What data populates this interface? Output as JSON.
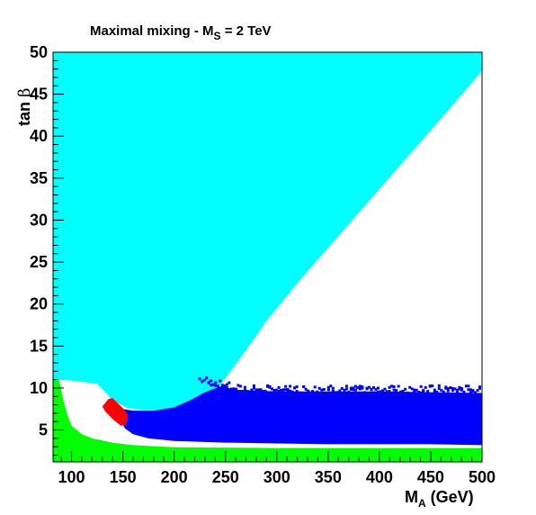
{
  "chart_data": {
    "type": "scatter",
    "title": {
      "prefix": "Maximal mixing - M",
      "subscript": "S",
      "suffix": " = 2 TeV"
    },
    "xlabel": {
      "main": "M",
      "subscript": "A",
      "suffix": " (GeV)"
    },
    "ylabel": {
      "main": "tan ",
      "greek": "β"
    },
    "xlim": [
      82,
      500
    ],
    "ylim": [
      1.2,
      50
    ],
    "xticks": [
      100,
      150,
      200,
      250,
      300,
      350,
      400,
      450,
      500
    ],
    "yticks": [
      5,
      10,
      15,
      20,
      25,
      30,
      35,
      40,
      45,
      50
    ],
    "grid": false,
    "colors": {
      "excluded_cyan": "#00ffff",
      "excluded_green": "#00ff00",
      "scan_blue": "#0000ff",
      "region_red": "#ff0000",
      "background": "#ffffff"
    },
    "regions": [
      {
        "color": "excluded_cyan",
        "points": [
          [
            82,
            50
          ],
          [
            500,
            50
          ],
          [
            500,
            47.8
          ],
          [
            470,
            43.5
          ],
          [
            420,
            36.5
          ],
          [
            370,
            29.5
          ],
          [
            320,
            22.5
          ],
          [
            290,
            18
          ],
          [
            270,
            14.5
          ],
          [
            255,
            12
          ],
          [
            245,
            10.4
          ],
          [
            230,
            9.2
          ],
          [
            215,
            8.3
          ],
          [
            200,
            7.6
          ],
          [
            185,
            7.4
          ],
          [
            170,
            7.4
          ],
          [
            155,
            7.6
          ],
          [
            145,
            8.2
          ],
          [
            140,
            8.5
          ],
          [
            133,
            9.5
          ],
          [
            125,
            10.5
          ],
          [
            100,
            10.9
          ],
          [
            82,
            11
          ]
        ]
      },
      {
        "color": "excluded_green",
        "points": [
          [
            82,
            11
          ],
          [
            88,
            10.9
          ],
          [
            92,
            8.5
          ],
          [
            96,
            6.8
          ],
          [
            100,
            5.5
          ],
          [
            110,
            4.5
          ],
          [
            120,
            4
          ],
          [
            140,
            3.5
          ],
          [
            160,
            3.2
          ],
          [
            200,
            2.95
          ],
          [
            250,
            2.9
          ],
          [
            300,
            2.85
          ],
          [
            350,
            2.85
          ],
          [
            400,
            2.85
          ],
          [
            450,
            2.85
          ],
          [
            500,
            2.85
          ],
          [
            500,
            1.2
          ],
          [
            82,
            1.2
          ]
        ]
      },
      {
        "color": "scan_blue",
        "points": [
          [
            142,
            8.5
          ],
          [
            150,
            7.5
          ],
          [
            160,
            7.3
          ],
          [
            180,
            7.3
          ],
          [
            200,
            7.7
          ],
          [
            215,
            8.5
          ],
          [
            230,
            9.5
          ],
          [
            245,
            10.2
          ],
          [
            260,
            9.8
          ],
          [
            300,
            9.6
          ],
          [
            350,
            9.6
          ],
          [
            400,
            9.6
          ],
          [
            450,
            9.5
          ],
          [
            500,
            9.4
          ],
          [
            500,
            3.2
          ],
          [
            450,
            3.3
          ],
          [
            400,
            3.3
          ],
          [
            350,
            3.3
          ],
          [
            300,
            3.4
          ],
          [
            250,
            3.5
          ],
          [
            200,
            3.7
          ],
          [
            175,
            4
          ],
          [
            160,
            4.5
          ],
          [
            152,
            5.2
          ],
          [
            146,
            6.5
          ],
          [
            143,
            7.5
          ]
        ]
      },
      {
        "color": "region_red",
        "points": [
          [
            136,
            8.7
          ],
          [
            140,
            8.8
          ],
          [
            144,
            8.3
          ],
          [
            150,
            7.6
          ],
          [
            155,
            6.8
          ],
          [
            153,
            5.6
          ],
          [
            148,
            5.5
          ],
          [
            140,
            6.3
          ],
          [
            133,
            7.2
          ],
          [
            130,
            7.8
          ]
        ]
      }
    ]
  }
}
